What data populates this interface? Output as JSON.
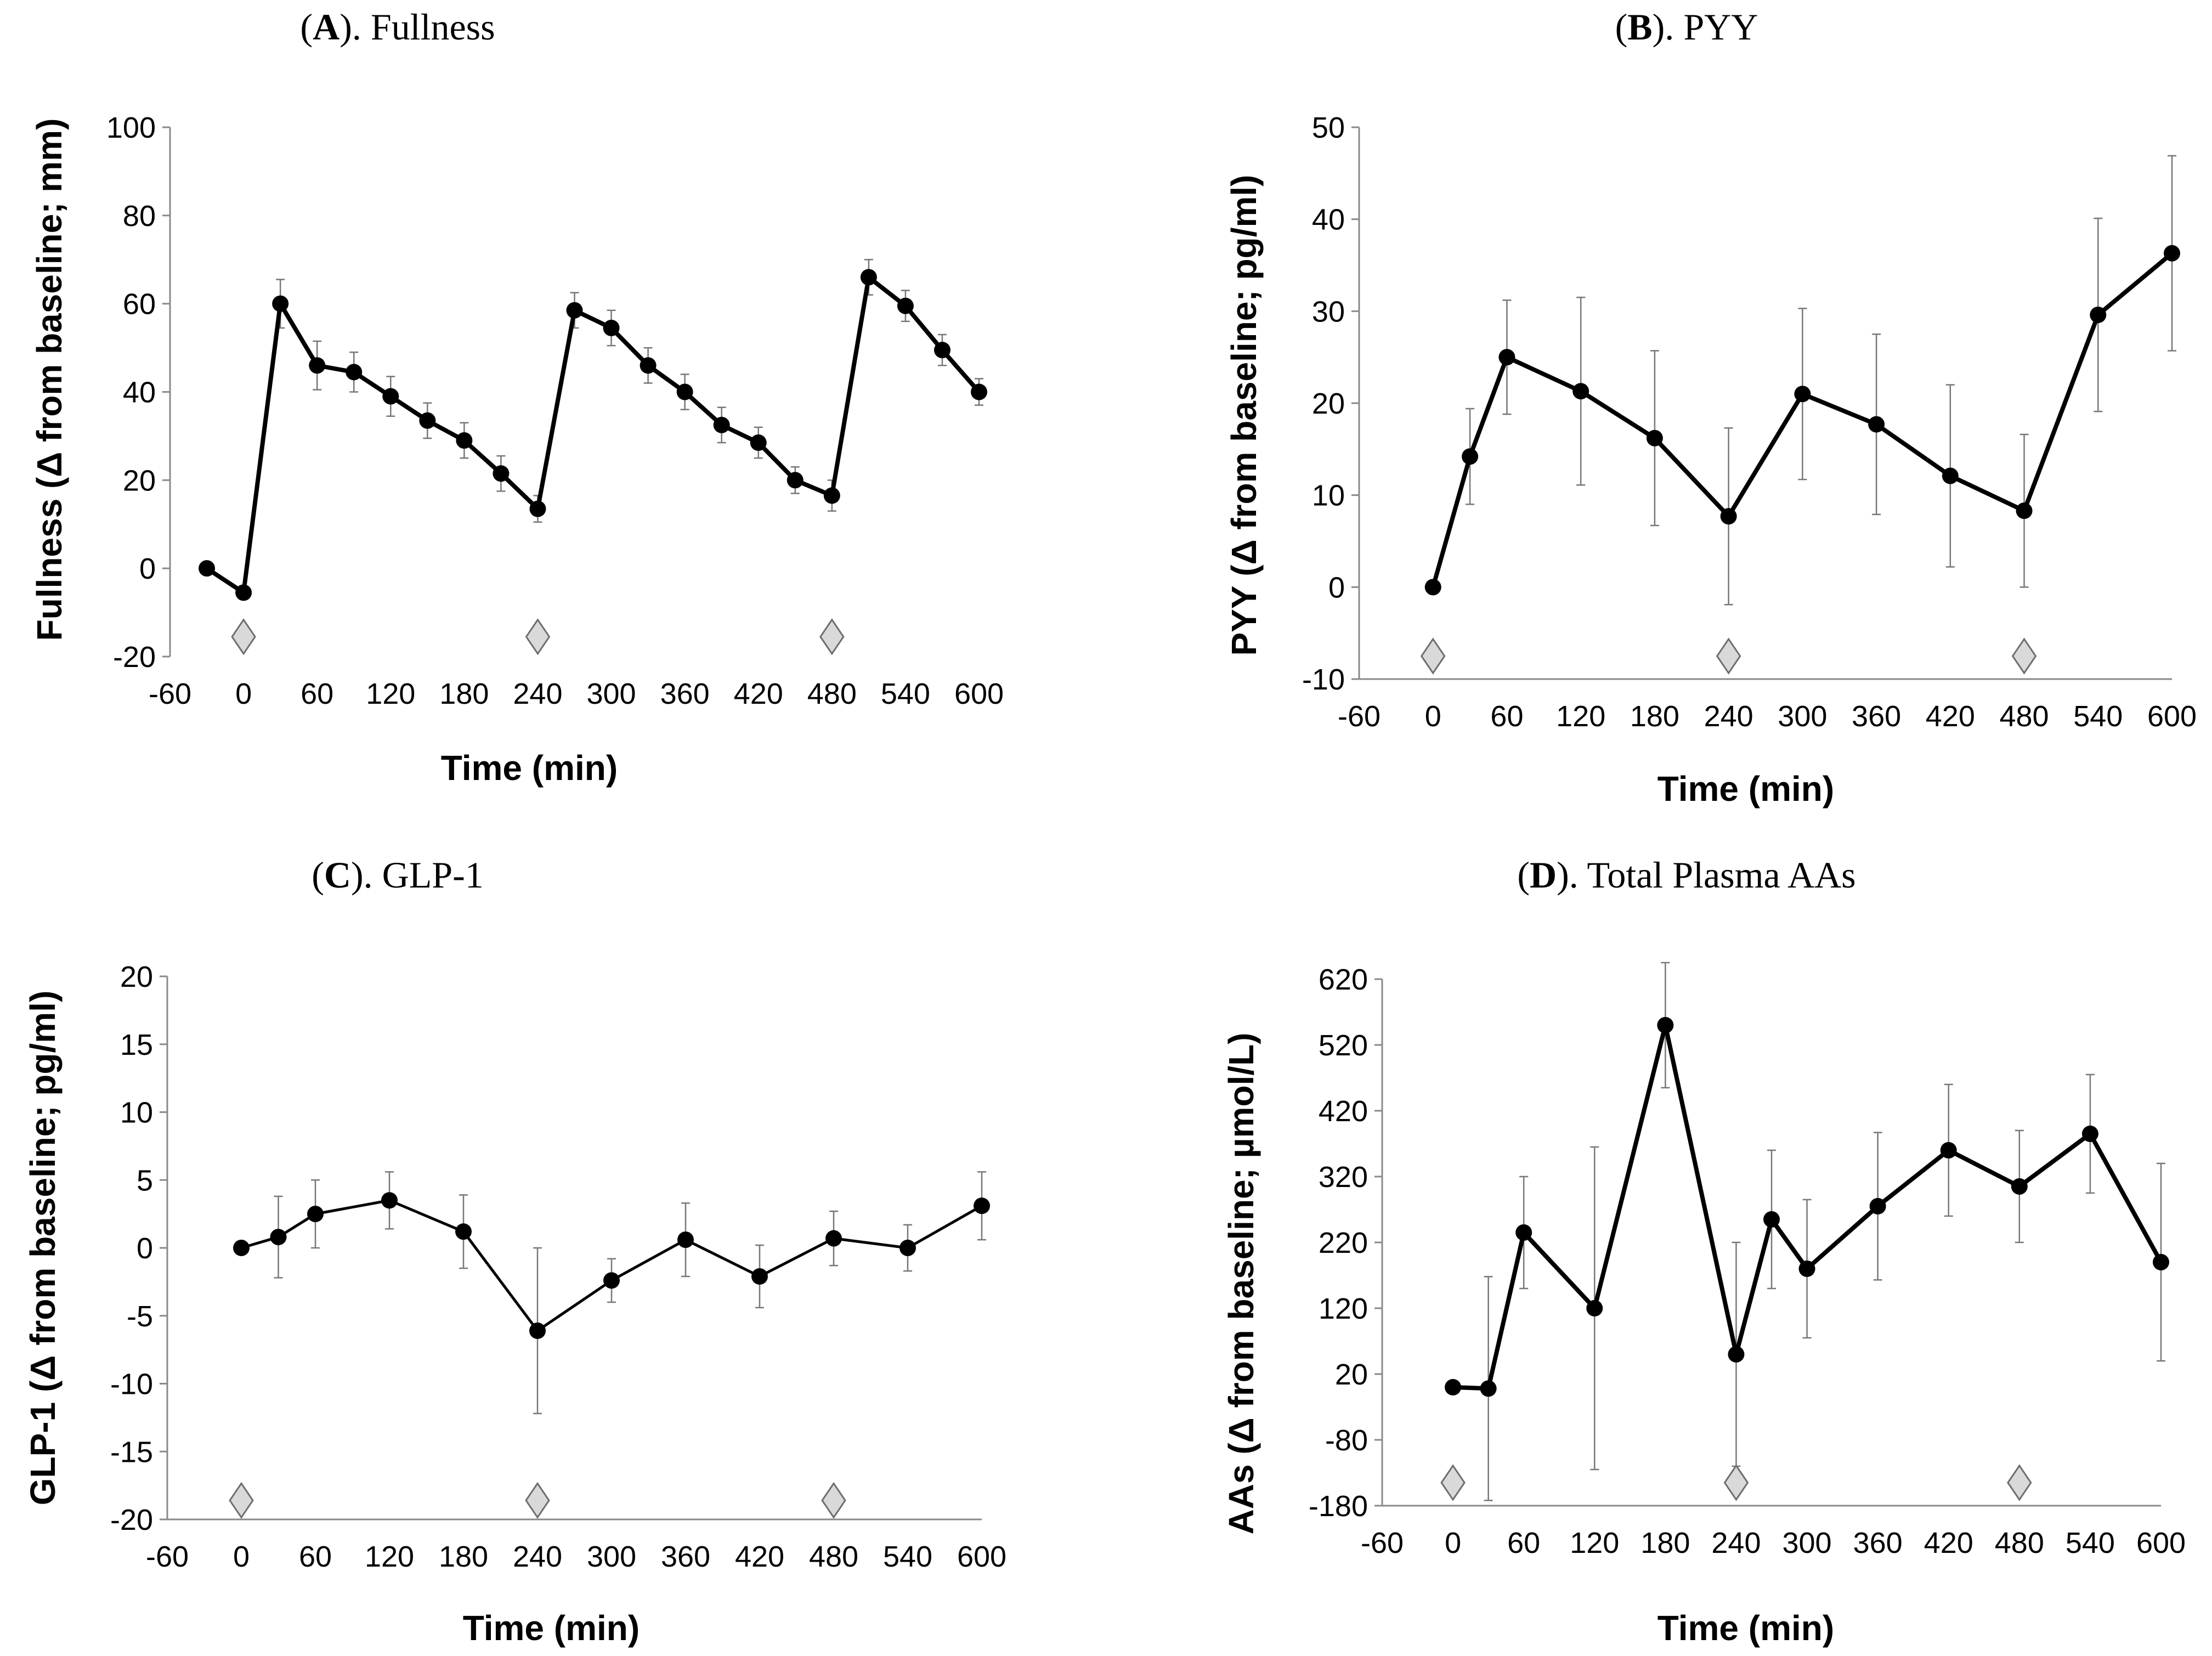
{
  "chart_data": [
    {
      "type": "line",
      "panel": "A",
      "title": "Fullness",
      "title_letter": "A",
      "xlabel": "Time (min)",
      "ylabel": "Fullness (Δ from baseline; mm)",
      "xlim": [
        -60,
        600
      ],
      "ylim": [
        -20,
        100
      ],
      "xticks": [
        -60,
        0,
        60,
        120,
        180,
        240,
        300,
        360,
        420,
        480,
        540,
        600
      ],
      "yticks": [
        -20,
        0,
        20,
        40,
        60,
        80,
        100
      ],
      "x": [
        -30,
        0,
        30,
        60,
        90,
        120,
        150,
        180,
        210,
        240,
        270,
        300,
        330,
        360,
        390,
        420,
        450,
        480,
        510,
        540,
        570,
        600
      ],
      "values": [
        0,
        -5.5,
        60,
        46,
        44.5,
        39,
        33.5,
        29,
        21.5,
        13.5,
        58.5,
        54.5,
        46,
        40,
        32.5,
        28.5,
        20,
        16.5,
        66,
        59.5,
        49.5,
        40
      ],
      "errors": [
        0,
        1.5,
        5.5,
        5.5,
        4.5,
        4.5,
        4,
        4,
        4,
        3,
        4,
        4,
        4,
        4,
        4,
        3.5,
        3,
        3.5,
        4,
        3.5,
        3.5,
        3
      ],
      "meal_markers": [
        0,
        240,
        480
      ],
      "marker_y": -15.5,
      "line_width": 8
    },
    {
      "type": "line",
      "panel": "B",
      "title": "PYY",
      "title_letter": "B",
      "xlabel": "Time (min)",
      "ylabel": "PYY (Δ from baseline; pg/ml)",
      "xlim": [
        -60,
        600
      ],
      "ylim": [
        -10,
        50
      ],
      "xticks": [
        -60,
        0,
        60,
        120,
        180,
        240,
        300,
        360,
        420,
        480,
        540,
        600
      ],
      "yticks": [
        -10,
        0,
        10,
        20,
        30,
        40,
        50
      ],
      "x": [
        0,
        30,
        60,
        120,
        180,
        240,
        300,
        360,
        420,
        480,
        540,
        600
      ],
      "values": [
        0,
        14.2,
        25,
        21.3,
        16.2,
        7.7,
        21,
        17.7,
        12.1,
        8.3,
        29.6,
        36.3
      ],
      "errors": [
        0,
        5.2,
        6.2,
        10.2,
        9.5,
        9.6,
        9.3,
        9.8,
        9.9,
        8.3,
        10.5,
        10.6
      ],
      "meal_markers": [
        0,
        240,
        480
      ],
      "marker_y": -7.5,
      "line_width": 8
    },
    {
      "type": "line",
      "panel": "C",
      "title": "GLP-1",
      "title_letter": "C",
      "xlabel": "Time (min)",
      "ylabel": "GLP-1 (Δ from baseline; pg/ml)",
      "xlim": [
        -60,
        600
      ],
      "ylim": [
        -20,
        20
      ],
      "xticks": [
        -60,
        0,
        60,
        120,
        180,
        240,
        300,
        360,
        420,
        480,
        540,
        600
      ],
      "yticks": [
        -20,
        -15,
        -10,
        -5,
        0,
        5,
        10,
        15,
        20
      ],
      "x": [
        0,
        30,
        60,
        120,
        180,
        240,
        300,
        360,
        420,
        480,
        540,
        600
      ],
      "values": [
        0,
        0.8,
        2.5,
        3.5,
        1.2,
        -6.1,
        -2.4,
        0.6,
        -2.1,
        0.7,
        0,
        3.1
      ],
      "errors": [
        0,
        3,
        2.5,
        2.1,
        2.7,
        6.1,
        1.6,
        2.7,
        2.3,
        2,
        1.7,
        2.5
      ],
      "meal_markers": [
        0,
        240,
        480
      ],
      "marker_y": -18.6,
      "line_width": 5
    },
    {
      "type": "line",
      "panel": "D",
      "title": "Total Plasma AAs",
      "title_letter": "D",
      "xlabel": "Time (min)",
      "ylabel": "AAs (Δ from baseline; µmol/L)",
      "xlim": [
        -60,
        600
      ],
      "ylim": [
        -180,
        620
      ],
      "xticks": [
        -60,
        0,
        60,
        120,
        180,
        240,
        300,
        360,
        420,
        480,
        540,
        600
      ],
      "yticks": [
        -180,
        -80,
        20,
        120,
        220,
        320,
        420,
        520,
        620
      ],
      "x": [
        0,
        30,
        60,
        120,
        180,
        240,
        270,
        300,
        360,
        420,
        480,
        540,
        600
      ],
      "values": [
        0,
        -2,
        235,
        120,
        550,
        50,
        255,
        180,
        275,
        360,
        305,
        385,
        190
      ],
      "errors": [
        0,
        170,
        85,
        245,
        95,
        170,
        105,
        105,
        112,
        100,
        85,
        90,
        150
      ],
      "meal_markers": [
        0,
        240,
        480
      ],
      "marker_y": -145,
      "line_width": 8
    }
  ]
}
